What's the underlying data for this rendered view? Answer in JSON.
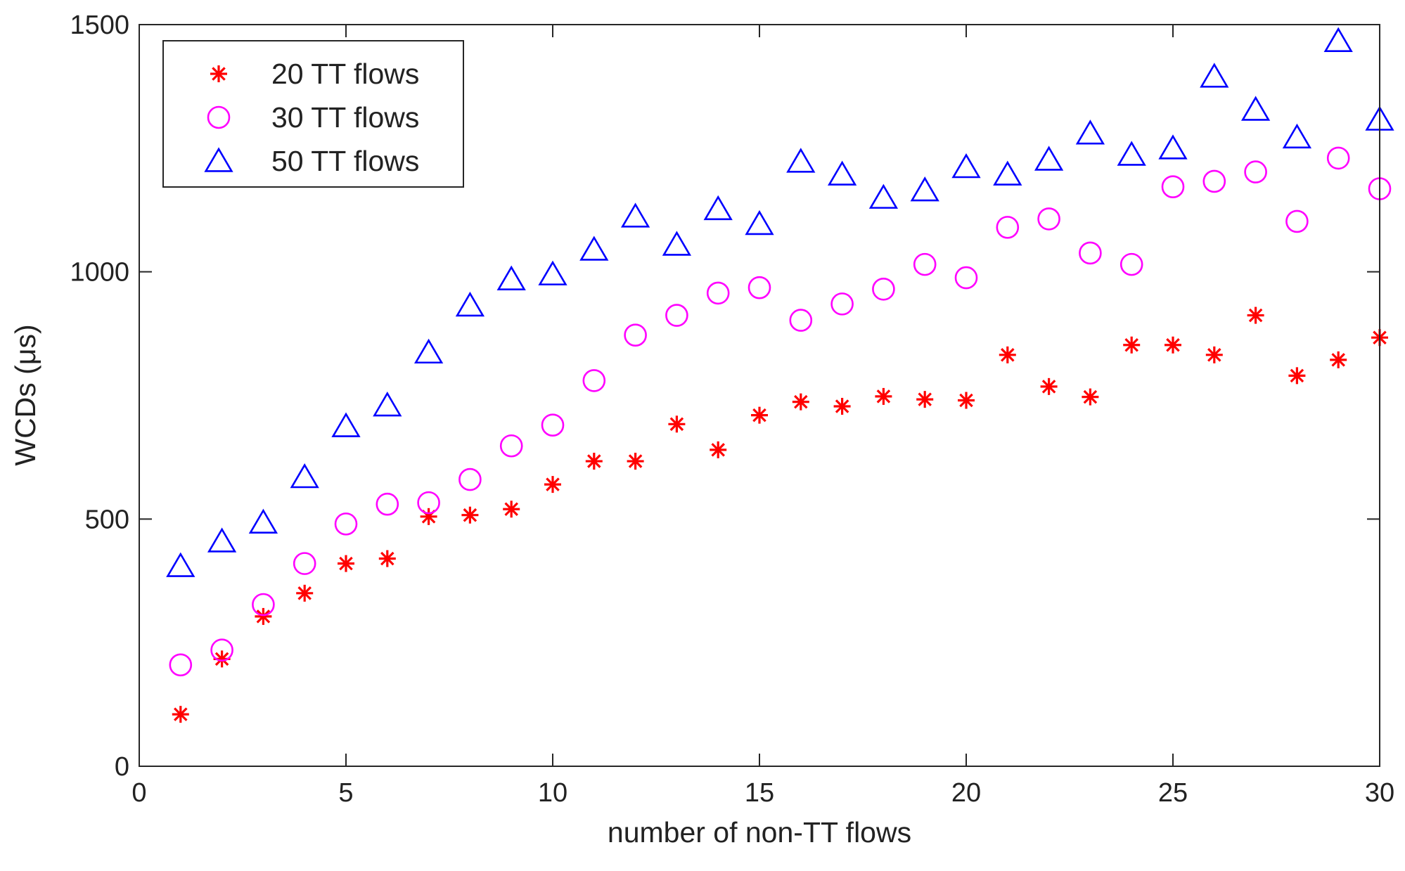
{
  "chart_data": {
    "type": "scatter",
    "title": "",
    "xlabel": "number of non-TT flows",
    "ylabel": "WCDs (μs)",
    "xlim": [
      0,
      30
    ],
    "ylim": [
      0,
      1500
    ],
    "xticks": [
      0,
      5,
      10,
      15,
      20,
      25,
      30
    ],
    "yticks": [
      0,
      500,
      1000,
      1500
    ],
    "x": [
      1,
      2,
      3,
      4,
      5,
      6,
      7,
      8,
      9,
      10,
      11,
      12,
      13,
      14,
      15,
      16,
      17,
      18,
      19,
      20,
      21,
      22,
      23,
      24,
      25,
      26,
      27,
      28,
      29,
      30
    ],
    "legend_position": "top-left",
    "series": [
      {
        "name": "20 TT flows",
        "marker": "asterisk",
        "color": "#ff0000",
        "values": [
          105,
          217,
          303,
          350,
          410,
          420,
          505,
          508,
          520,
          570,
          617,
          617,
          692,
          640,
          710,
          737,
          728,
          748,
          742,
          740,
          832,
          768,
          747,
          852,
          852,
          832,
          912,
          790,
          822,
          867
        ]
      },
      {
        "name": "30 TT flows",
        "marker": "circle",
        "color": "#ff00ff",
        "values": [
          205,
          235,
          327,
          410,
          490,
          530,
          533,
          580,
          648,
          690,
          780,
          872,
          912,
          957,
          968,
          902,
          935,
          965,
          1015,
          988,
          1090,
          1107,
          1038,
          1015,
          1172,
          1183,
          1202,
          1102,
          1230,
          1168
        ]
      },
      {
        "name": "50 TT flows",
        "marker": "triangle",
        "color": "#0000ff",
        "values": [
          405,
          455,
          493,
          585,
          688,
          730,
          837,
          932,
          985,
          995,
          1045,
          1112,
          1055,
          1127,
          1097,
          1223,
          1197,
          1150,
          1165,
          1212,
          1197,
          1227,
          1280,
          1237,
          1250,
          1395,
          1328,
          1272,
          1467,
          1308
        ]
      }
    ]
  }
}
